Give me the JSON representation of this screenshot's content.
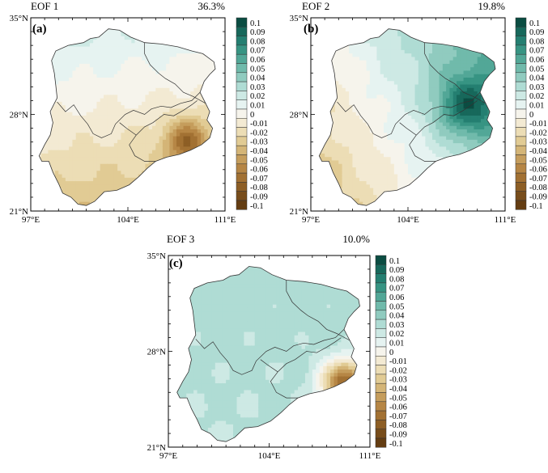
{
  "colorbar": {
    "labels": [
      "0.1",
      "0.09",
      "0.08",
      "0.07",
      "0.06",
      "0.05",
      "0.04",
      "0.03",
      "0.02",
      "0.01",
      "0",
      "-0.01",
      "-0.02",
      "-0.03",
      "-0.04",
      "-0.05",
      "-0.06",
      "-0.07",
      "-0.08",
      "-0.09",
      "-0.1"
    ],
    "colors": [
      "#0b4d42",
      "#17685b",
      "#247f71",
      "#379483",
      "#52a797",
      "#70baab",
      "#90cbbf",
      "#afdcd4",
      "#cde9e4",
      "#e6f3f1",
      "#f6f4ec",
      "#f3ead3",
      "#ecddb5",
      "#e1cb94",
      "#d4b577",
      "#c59d5c",
      "#b68645",
      "#a27133",
      "#8d5e25",
      "#784d1b",
      "#643d12"
    ]
  },
  "axes": {
    "x_ticks": [
      "97°E",
      "104°E",
      "111°E"
    ],
    "y_ticks": [
      "35°N",
      "28°N",
      "21°N"
    ]
  },
  "panels": [
    {
      "label": "(a)",
      "eof": "EOF 1",
      "variance": "36.3%",
      "pattern": {
        "north": 0.015,
        "south": -0.035,
        "east": -0.005,
        "hot_center": [
          108.3,
          26.0
        ],
        "hot_value": -0.075,
        "hot_radius": 1.6
      }
    },
    {
      "label": "(b)",
      "eof": "EOF 2",
      "variance": "19.8%",
      "pattern": {
        "north": 0.03,
        "south": -0.005,
        "east": 0.03,
        "hot_center": [
          108.5,
          28.8
        ],
        "hot_value": 0.095,
        "hot_radius": 2.2
      }
    },
    {
      "label": "(c)",
      "eof": "EOF 3",
      "variance": "10.0%",
      "pattern": {
        "north": 0.03,
        "south": 0.025,
        "east": 0.0,
        "hot_center": [
          109.3,
          25.8
        ],
        "hot_value": -0.075,
        "hot_radius": 1.6
      }
    }
  ]
}
